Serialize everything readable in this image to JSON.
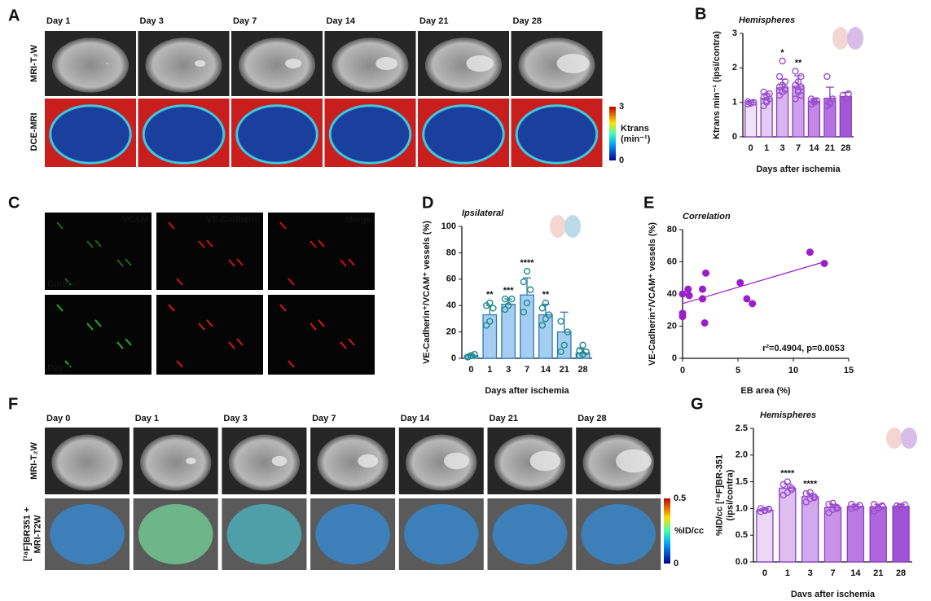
{
  "panel_a": {
    "label": "A",
    "days": [
      "Day 1",
      "Day 3",
      "Day 7",
      "Day 14",
      "Day 21",
      "Day 28"
    ],
    "rows": [
      "MRI-T₂W",
      "DCE-MRI"
    ],
    "colorbar_ticks": [
      3,
      0
    ],
    "colorbar_label": [
      "Ktrans",
      "(min⁻¹)"
    ]
  },
  "panel_c": {
    "label": "C",
    "channels": [
      "VCAM",
      "VE-Cadherin",
      "Merge"
    ],
    "rows": [
      "Control",
      "Day 7"
    ]
  },
  "panel_f": {
    "label": "F",
    "days": [
      "Day 0",
      "Day 1",
      "Day 3",
      "Day 7",
      "Day 14",
      "Day 21",
      "Day 28"
    ],
    "rows": [
      "MRI-T₂W",
      [
        "[¹⁸F]BR351 +",
        "MRI-T2W"
      ]
    ],
    "colorbar_ticks": [
      0.5,
      0
    ],
    "colorbar_label": "%ID/cc"
  },
  "chart_data": [
    {
      "type": "bar",
      "label": "B",
      "title": "Hemispheres",
      "xlabel": "Days after ischemia",
      "ylabel": "Ktrans min⁻¹ (ipsi/contra)",
      "categories": [
        "0",
        "1",
        "3",
        "7",
        "14",
        "21",
        "28"
      ],
      "values": [
        1.0,
        1.12,
        1.42,
        1.47,
        1.03,
        1.12,
        1.17
      ],
      "errors": [
        0.05,
        0.13,
        0.25,
        0.3,
        0.07,
        0.32,
        0.12
      ],
      "points": [
        [
          0.95,
          0.98,
          1.0,
          1.02,
          0.97,
          1.0
        ],
        [
          0.9,
          1.0,
          1.1,
          1.15,
          1.2,
          1.25,
          1.3,
          1.05
        ],
        [
          1.2,
          1.3,
          1.4,
          1.45,
          1.5,
          1.6,
          1.75,
          2.2,
          1.35
        ],
        [
          1.1,
          1.3,
          1.45,
          1.5,
          1.6,
          1.75,
          1.9,
          1.35,
          1.2
        ],
        [
          0.95,
          1.0,
          1.05,
          1.1,
          1.05
        ],
        [
          0.9,
          1.0,
          1.1,
          1.75,
          0.95
        ],
        [
          1.05,
          1.1,
          1.25,
          1.2
        ]
      ],
      "significance": [
        null,
        null,
        "*",
        "**",
        null,
        null,
        null
      ],
      "colors": [
        "#eee2f6",
        "#e3cbf2",
        "#d9b4ef",
        "#cf9eec",
        "#c487e8",
        "#b670e2",
        "#a358d8"
      ],
      "edge_color": "#8b3fbf",
      "point_color": "#9a4fcf",
      "ylim": [
        0,
        3
      ],
      "yticks": [
        0,
        1,
        2,
        3
      ]
    },
    {
      "type": "bar",
      "label": "D",
      "title": "Ipsilateral",
      "xlabel": "Days after ischemia",
      "ylabel": "VE-Cadherin⁺/VCAM⁺ vessels (%)",
      "categories": [
        "0",
        "1",
        "3",
        "7",
        "14",
        "21",
        "28"
      ],
      "values": [
        2,
        33,
        41,
        48,
        33,
        20,
        4
      ],
      "errors": [
        1,
        7,
        4,
        13,
        8,
        15,
        3
      ],
      "points": [
        [
          1,
          2,
          3,
          1,
          2
        ],
        [
          25,
          28,
          38,
          40,
          42
        ],
        [
          37,
          40,
          45,
          45
        ],
        [
          35,
          42,
          52,
          58,
          66
        ],
        [
          25,
          30,
          33,
          38,
          42
        ],
        [
          5,
          10,
          20,
          28
        ],
        [
          2,
          3,
          5,
          6,
          10
        ]
      ],
      "significance": [
        null,
        "**",
        "***",
        "****",
        "**",
        null,
        null
      ],
      "color": "#a6cdf2",
      "edge_color": "#2e7bb8",
      "point_color": "#1f8a8a",
      "ylim": [
        0,
        100
      ],
      "yticks": [
        0,
        20,
        40,
        60,
        80,
        100
      ]
    },
    {
      "type": "scatter",
      "label": "E",
      "title": "Correlation",
      "xlabel": "EB area (%)",
      "ylabel": "VE-Cadherin⁺/VCAM⁺ vessels (%)",
      "x": [
        0,
        0,
        0,
        0.5,
        0.6,
        1.8,
        1.8,
        2.1,
        2.0,
        5.2,
        5.8,
        6.3,
        11.5,
        12.8
      ],
      "y": [
        26,
        28,
        40,
        43,
        39,
        43,
        37,
        53,
        22,
        47,
        37,
        34,
        66,
        59
      ],
      "fit": {
        "x": [
          0,
          12.8
        ],
        "y": [
          34,
          60
        ]
      },
      "annotation": "r²=0.4904, p=0.0053",
      "color": "#9b1fc9",
      "xlim": [
        0,
        15
      ],
      "xticks": [
        0,
        5,
        10,
        15
      ],
      "ylim": [
        0,
        80
      ],
      "yticks": [
        0,
        20,
        40,
        60,
        80
      ]
    },
    {
      "type": "bar",
      "label": "G",
      "title": "Hemispheres",
      "xlabel": "Days after ischemia",
      "ylabel": [
        "%ID/cc [¹⁸F]BR-351",
        "(ipsi/contra)"
      ],
      "categories": [
        "0",
        "1",
        "3",
        "7",
        "14",
        "21",
        "28"
      ],
      "values": [
        0.97,
        1.38,
        1.22,
        1.02,
        1.04,
        1.03,
        1.04
      ],
      "errors": [
        0.03,
        0.08,
        0.06,
        0.06,
        0.04,
        0.05,
        0.04
      ],
      "points": [
        [
          0.94,
          0.96,
          0.98,
          1.0,
          0.97,
          0.99
        ],
        [
          1.25,
          1.3,
          1.38,
          1.45,
          1.5,
          1.35
        ],
        [
          1.12,
          1.18,
          1.22,
          1.28,
          1.3,
          1.2
        ],
        [
          0.92,
          0.98,
          1.02,
          1.08,
          1.1,
          1.0
        ],
        [
          1.0,
          1.03,
          1.06,
          1.08,
          1.02
        ],
        [
          0.95,
          1.0,
          1.05,
          1.08,
          1.02,
          1.04
        ],
        [
          1.0,
          1.04,
          1.07,
          1.05
        ]
      ],
      "significance": [
        null,
        "****",
        "****",
        null,
        null,
        null,
        null
      ],
      "colors": [
        "#ead8f4",
        "#ddc0f0",
        "#d2a9ec",
        "#c892e8",
        "#bc7be3",
        "#ae65dd",
        "#9f52d6"
      ],
      "edge_color": "#8b3fbf",
      "point_color": "#9a4fcf",
      "ylim": [
        0,
        2.5
      ],
      "yticks": [
        {
          "value": 0,
          "label": "0.0"
        },
        0.5,
        {
          "value": 1,
          "label": "1.0"
        },
        1.5,
        {
          "value": 2,
          "label": "2.0"
        },
        2.5
      ]
    }
  ]
}
